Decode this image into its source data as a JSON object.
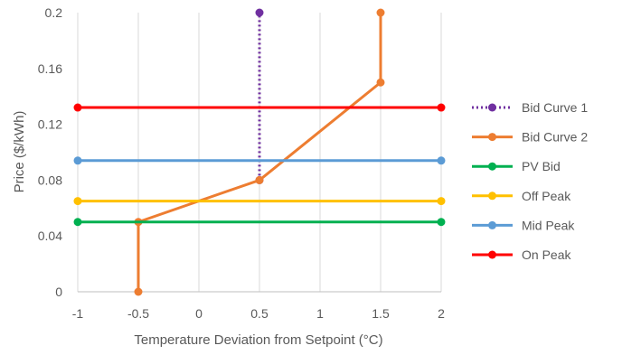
{
  "chart_data": {
    "type": "line",
    "xlabel": "Temperature Deviation from Setpoint (°C)",
    "ylabel": "Price ($/kWh)",
    "xlim": [
      -1,
      2
    ],
    "ylim": [
      0,
      0.2
    ],
    "x_ticks": [
      -1,
      -0.5,
      0,
      0.5,
      1,
      1.5,
      2
    ],
    "x_tick_labels": [
      "-1",
      "-0.5",
      "0",
      "0.5",
      "1",
      "1.5",
      "2"
    ],
    "y_ticks": [
      0,
      0.04,
      0.08,
      0.12,
      0.16,
      0.2
    ],
    "y_tick_labels": [
      "0",
      "0.04",
      "0.08",
      "0.12",
      "0.16",
      "0.2"
    ],
    "grid": "vertical",
    "legend_position": "right",
    "series": [
      {
        "name": "Bid Curve 1",
        "color": "#7030a0",
        "dash": "dotted",
        "points": [
          [
            0.5,
            0.08
          ],
          [
            0.5,
            0.2
          ]
        ]
      },
      {
        "name": "Bid Curve 2",
        "color": "#ed7d31",
        "dash": "solid",
        "points": [
          [
            -0.5,
            0
          ],
          [
            -0.5,
            0.05
          ],
          [
            0.5,
            0.08
          ],
          [
            1.5,
            0.15
          ],
          [
            1.5,
            0.2
          ]
        ]
      },
      {
        "name": "PV Bid",
        "color": "#00b050",
        "dash": "solid",
        "points": [
          [
            -1,
            0.05
          ],
          [
            2,
            0.05
          ]
        ]
      },
      {
        "name": "Off Peak",
        "color": "#ffc000",
        "dash": "solid",
        "points": [
          [
            -1,
            0.065
          ],
          [
            2,
            0.065
          ]
        ]
      },
      {
        "name": "Mid Peak",
        "color": "#5b9bd5",
        "dash": "solid",
        "points": [
          [
            -1,
            0.094
          ],
          [
            2,
            0.094
          ]
        ]
      },
      {
        "name": "On Peak",
        "color": "#ff0000",
        "dash": "solid",
        "points": [
          [
            -1,
            0.132
          ],
          [
            2,
            0.132
          ]
        ]
      }
    ]
  }
}
